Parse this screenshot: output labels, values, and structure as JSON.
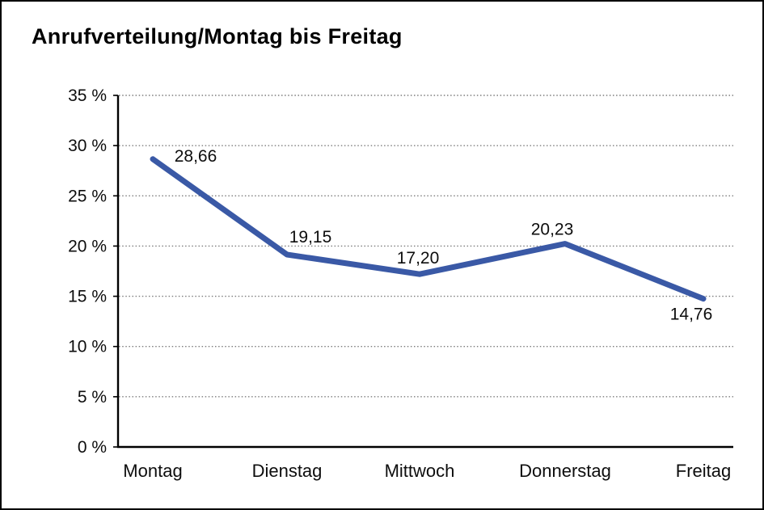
{
  "page": {
    "background_color": "#ffffff",
    "border_color": "#000000"
  },
  "chart": {
    "title": "Anrufverteilung/Montag bis Freitag"
  },
  "chart_data": {
    "type": "line",
    "title": "Anrufverteilung/Montag bis Freitag",
    "categories": [
      "Montag",
      "Dienstag",
      "Mittwoch",
      "Donnerstag",
      "Freitag"
    ],
    "values": [
      28.66,
      19.15,
      17.2,
      20.23,
      14.76
    ],
    "point_labels": [
      "28,66",
      "19,15",
      "17,20",
      "20,23",
      "14,76"
    ],
    "label_positions": [
      "right",
      "above-right",
      "above",
      "above-left",
      "below-left"
    ],
    "xlabel": "",
    "ylabel": "",
    "ylim": [
      0,
      35
    ],
    "y_tick_step": 5,
    "y_tick_labels": [
      "0 %",
      "5 %",
      "10 %",
      "15 %",
      "20 %",
      "25 %",
      "30 %",
      "35 %"
    ],
    "grid": "horizontal-dotted",
    "legend": "none",
    "line_color": "#3A59A6",
    "text_color": "#0d0d0d"
  }
}
